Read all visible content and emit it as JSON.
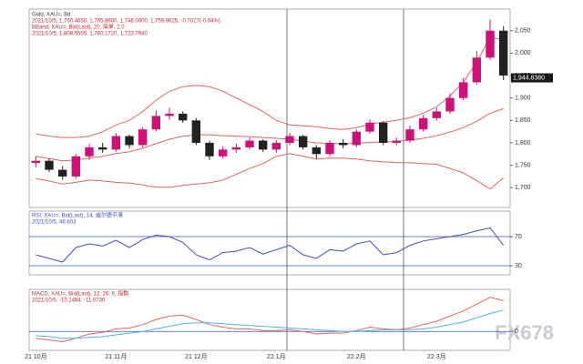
{
  "chart_data": [
    {
      "type": "candlestick",
      "title": "Gold, XAU=, Bd",
      "subtitle": "2021/10/5, 1,760.4650, 1,765.8600, 1,748.0000, 1,759.9625, -0.7027(-0.04%)",
      "overlay_title": "BBand, XAU=, Bid(Last), 20, 简单, 2.0",
      "overlay_subtitle": "2021/10/5, 1,808.5505, 1,760.1720, 1,723.7940",
      "up_color": "#d0107a",
      "down_color": "#222222",
      "open": [
        1755,
        1760,
        1740,
        1725,
        1770,
        1790,
        1785,
        1815,
        1795,
        1830,
        1860,
        1865,
        1850,
        1800,
        1770,
        1785,
        1790,
        1805,
        1785,
        1800,
        1815,
        1790,
        1775,
        1800,
        1795,
        1825,
        1845,
        1800,
        1805,
        1830,
        1855,
        1870,
        1900,
        1935,
        1990,
        2050
      ],
      "high": [
        1770,
        1765,
        1748,
        1775,
        1798,
        1800,
        1822,
        1818,
        1835,
        1872,
        1878,
        1870,
        1855,
        1805,
        1792,
        1798,
        1812,
        1808,
        1806,
        1822,
        1818,
        1795,
        1806,
        1808,
        1830,
        1852,
        1848,
        1812,
        1838,
        1862,
        1878,
        1910,
        1945,
        2005,
        2075,
        2060
      ],
      "low": [
        1745,
        1735,
        1718,
        1720,
        1762,
        1778,
        1780,
        1788,
        1790,
        1825,
        1852,
        1845,
        1795,
        1762,
        1765,
        1778,
        1785,
        1780,
        1778,
        1795,
        1785,
        1765,
        1770,
        1788,
        1790,
        1820,
        1795,
        1795,
        1800,
        1825,
        1850,
        1865,
        1895,
        1930,
        1985,
        1940
      ],
      "close": [
        1760,
        1740,
        1725,
        1770,
        1790,
        1785,
        1815,
        1795,
        1830,
        1860,
        1865,
        1850,
        1800,
        1770,
        1785,
        1790,
        1805,
        1785,
        1800,
        1815,
        1790,
        1775,
        1800,
        1795,
        1825,
        1845,
        1800,
        1805,
        1830,
        1855,
        1870,
        1900,
        1935,
        1990,
        2050,
        1950
      ],
      "series": [
        {
          "color": "#e8635a",
          "values": [
            1820,
            1815,
            1812,
            1812,
            1815,
            1825,
            1840,
            1850,
            1870,
            1895,
            1915,
            1925,
            1928,
            1925,
            1915,
            1900,
            1885,
            1870,
            1850,
            1840,
            1838,
            1836,
            1832,
            1830,
            1834,
            1842,
            1846,
            1850,
            1856,
            1866,
            1880,
            1905,
            1935,
            1980,
            2035,
            2030
          ]
        },
        {
          "color": "#e8635a",
          "values": [
            1770,
            1765,
            1760,
            1762,
            1766,
            1770,
            1776,
            1780,
            1788,
            1798,
            1808,
            1815,
            1818,
            1818,
            1816,
            1815,
            1814,
            1812,
            1810,
            1808,
            1804,
            1800,
            1799,
            1798,
            1799,
            1801,
            1802,
            1803,
            1806,
            1810,
            1816,
            1824,
            1834,
            1848,
            1866,
            1876
          ]
        },
        {
          "color": "#e8635a",
          "values": [
            1720,
            1715,
            1708,
            1712,
            1717,
            1715,
            1712,
            1710,
            1706,
            1701,
            1701,
            1705,
            1708,
            1711,
            1717,
            1730,
            1743,
            1754,
            1770,
            1776,
            1770,
            1764,
            1766,
            1766,
            1764,
            1760,
            1758,
            1756,
            1756,
            1754,
            1752,
            1743,
            1733,
            1716,
            1697,
            1722
          ]
        }
      ],
      "ylim": [
        1660,
        2090
      ],
      "yticks": [
        {
          "value": 1700,
          "label": "1,700"
        },
        {
          "value": 1750,
          "label": "1,750"
        },
        {
          "value": 1800,
          "label": "1,800"
        },
        {
          "value": 1850,
          "label": "1,850"
        },
        {
          "value": 1900,
          "label": "1,900"
        },
        {
          "value": 1950,
          "label": "1,950"
        },
        {
          "value": 2000,
          "label": "2,000"
        },
        {
          "value": 2050,
          "label": "2,050"
        }
      ],
      "last_price": {
        "value": 1944.838,
        "label": "1,944.8380"
      }
    },
    {
      "type": "line",
      "title": "RSI, XAU=, Bid(Last), 14, 威尔德平滑",
      "subtitle": "2021/10/5, 46.603",
      "series": [
        {
          "color": "#3d4fc4",
          "values": [
            45,
            40,
            35,
            55,
            60,
            57,
            65,
            55,
            66,
            72,
            70,
            62,
            45,
            38,
            48,
            50,
            55,
            46,
            52,
            58,
            45,
            40,
            52,
            50,
            60,
            64,
            45,
            48,
            58,
            64,
            67,
            70,
            73,
            78,
            82,
            58
          ]
        }
      ],
      "ylim": [
        20,
        100
      ],
      "yticks": [
        30,
        70
      ]
    },
    {
      "type": "line",
      "title": "MACD, XAU=, Bid(Last), 12, 26, 9, 指数",
      "subtitle": "2021/10/5, -10.1484, -11.0730",
      "series": [
        {
          "color": "#e8635a",
          "values": [
            -8,
            -10,
            -12,
            -8,
            -3,
            -1,
            3,
            4,
            8,
            14,
            18,
            19,
            14,
            8,
            5,
            3,
            3,
            1,
            1,
            2,
            0,
            -3,
            -2,
            -2,
            1,
            5,
            3,
            2,
            4,
            8,
            12,
            18,
            24,
            32,
            40,
            36
          ]
        },
        {
          "color": "#4bb3e6",
          "values": [
            -5,
            -6,
            -8,
            -8,
            -7,
            -6,
            -4,
            -2,
            0,
            3,
            6,
            9,
            10,
            10,
            9,
            8,
            7,
            6,
            5,
            4,
            3,
            2,
            1,
            0,
            0,
            1,
            2,
            2,
            2,
            3,
            5,
            8,
            11,
            16,
            21,
            25
          ]
        }
      ],
      "ylim": [
        -20,
        45
      ],
      "yticks": [
        0
      ],
      "categories": [
        "21 10月",
        null,
        null,
        null,
        null,
        null,
        "21 11月",
        null,
        null,
        null,
        null,
        null,
        "21 12月",
        null,
        null,
        null,
        null,
        null,
        "22 1月",
        null,
        null,
        null,
        null,
        null,
        "22 2月",
        null,
        null,
        null,
        null,
        null,
        "22 3月",
        null,
        null,
        null,
        null,
        null
      ]
    }
  ],
  "watermark": "FX678"
}
